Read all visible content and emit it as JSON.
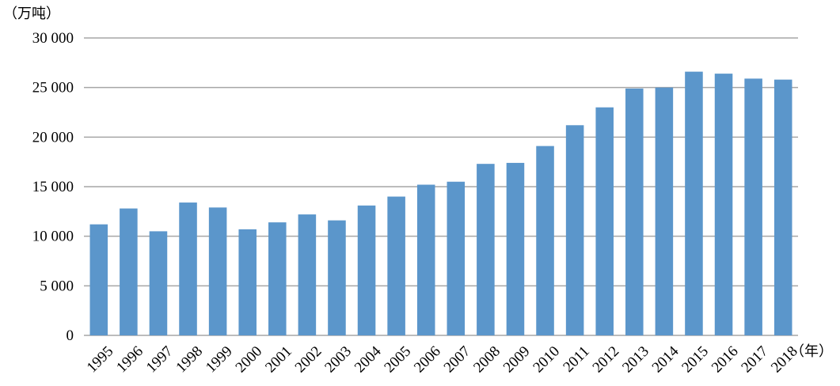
{
  "chart_data": {
    "type": "bar",
    "y_unit_label": "（万吨）",
    "x_unit_label": "（年）",
    "categories": [
      "1995",
      "1996",
      "1997",
      "1998",
      "1999",
      "2000",
      "2001",
      "2002",
      "2003",
      "2004",
      "2005",
      "2006",
      "2007",
      "2008",
      "2009",
      "2010",
      "2011",
      "2012",
      "2013",
      "2014",
      "2015",
      "2016",
      "2017",
      "2018"
    ],
    "values": [
      11200,
      12800,
      10500,
      13400,
      12900,
      10700,
      11400,
      12200,
      11600,
      13100,
      14000,
      15200,
      15500,
      17300,
      17400,
      19100,
      21200,
      23000,
      24900,
      25000,
      26600,
      26400,
      25900,
      25800
    ],
    "ylim": [
      0,
      30000
    ],
    "yticks": [
      0,
      5000,
      10000,
      15000,
      20000,
      25000,
      30000
    ],
    "ytick_labels": [
      "0",
      "5 000",
      "10 000",
      "15 000",
      "20 000",
      "25 000",
      "30 000"
    ],
    "grid": true,
    "bar_color": "#5B96CB",
    "grid_color": "#A6A6A6"
  }
}
